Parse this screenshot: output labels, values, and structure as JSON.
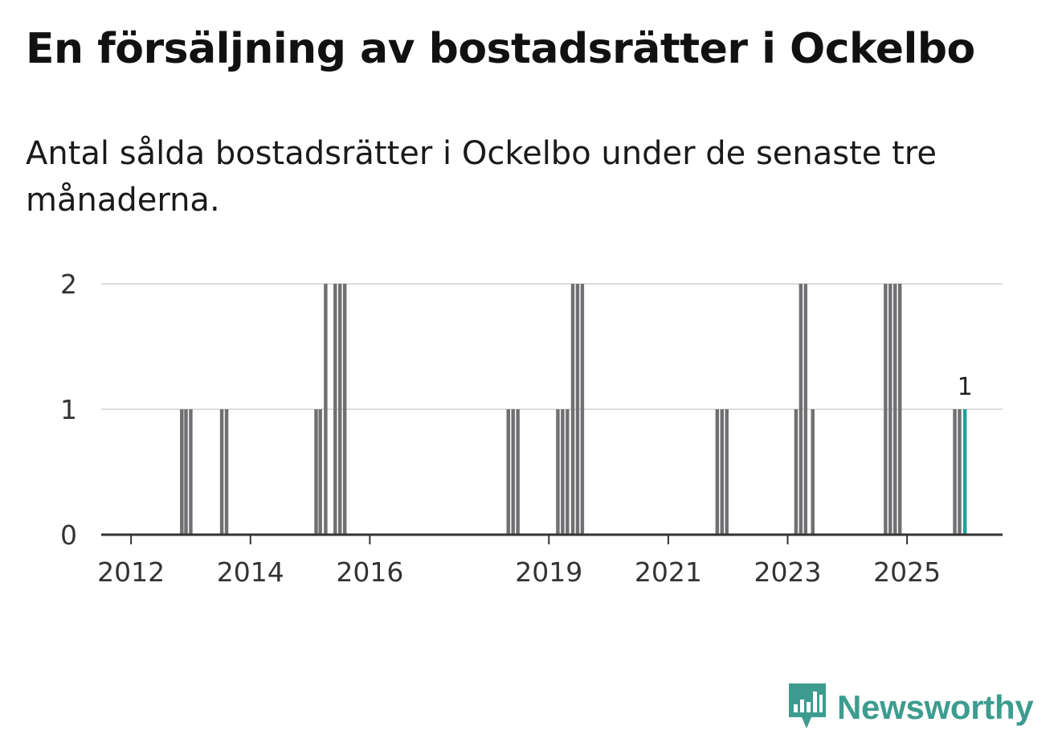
{
  "title": "En försäljning av bostadsrätter i Ockelbo",
  "subtitle": "Antal sålda bostadsrätter i Ockelbo under de senaste tre månaderna.",
  "brand": {
    "name": "Newsworthy",
    "color": "#3d9c8f"
  },
  "colors": {
    "bar": "#707073",
    "highlight": "#1fa298",
    "grid": "#dddddd",
    "axis": "#333333",
    "text": "#333333"
  },
  "chart_data": {
    "type": "bar",
    "title": "En försäljning av bostadsrätter i Ockelbo",
    "ylabel": "",
    "xlabel": "",
    "ylim": [
      0,
      2
    ],
    "yticks": [
      0,
      1,
      2
    ],
    "xlim": [
      2011.5,
      2026.6
    ],
    "xticks": [
      2012,
      2014,
      2016,
      2019,
      2021,
      2023,
      2025
    ],
    "grid": true,
    "bar_width_years": 0.06,
    "series": [
      {
        "name": "Antal sålda",
        "points": [
          {
            "x": 2012.85,
            "y": 1
          },
          {
            "x": 2012.92,
            "y": 1
          },
          {
            "x": 2013.0,
            "y": 1
          },
          {
            "x": 2013.52,
            "y": 1
          },
          {
            "x": 2013.6,
            "y": 1
          },
          {
            "x": 2015.1,
            "y": 1
          },
          {
            "x": 2015.17,
            "y": 1
          },
          {
            "x": 2015.26,
            "y": 2
          },
          {
            "x": 2015.42,
            "y": 2
          },
          {
            "x": 2015.5,
            "y": 2
          },
          {
            "x": 2015.58,
            "y": 2
          },
          {
            "x": 2018.32,
            "y": 1
          },
          {
            "x": 2018.4,
            "y": 1
          },
          {
            "x": 2018.48,
            "y": 1
          },
          {
            "x": 2019.15,
            "y": 1
          },
          {
            "x": 2019.23,
            "y": 1
          },
          {
            "x": 2019.31,
            "y": 1
          },
          {
            "x": 2019.4,
            "y": 2
          },
          {
            "x": 2019.48,
            "y": 2
          },
          {
            "x": 2019.56,
            "y": 2
          },
          {
            "x": 2021.82,
            "y": 1
          },
          {
            "x": 2021.9,
            "y": 1
          },
          {
            "x": 2021.98,
            "y": 1
          },
          {
            "x": 2023.14,
            "y": 1
          },
          {
            "x": 2023.22,
            "y": 2
          },
          {
            "x": 2023.3,
            "y": 2
          },
          {
            "x": 2023.42,
            "y": 1
          },
          {
            "x": 2024.64,
            "y": 2
          },
          {
            "x": 2024.72,
            "y": 2
          },
          {
            "x": 2024.8,
            "y": 2
          },
          {
            "x": 2024.88,
            "y": 2
          },
          {
            "x": 2025.8,
            "y": 1
          },
          {
            "x": 2025.88,
            "y": 1
          },
          {
            "x": 2025.97,
            "y": 1,
            "highlight": true,
            "label": "1"
          }
        ]
      }
    ]
  }
}
